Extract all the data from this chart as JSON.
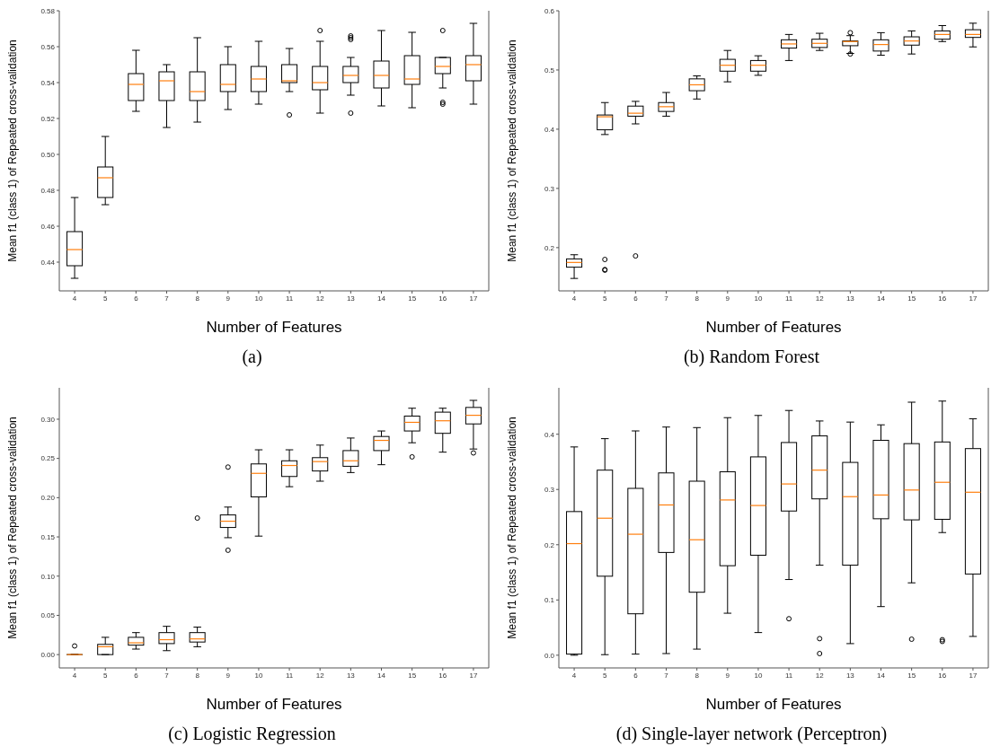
{
  "chart_data": [
    {
      "type": "box",
      "title": "(a)",
      "xlabel": "Number of Features",
      "ylabel": "Mean f1 (class 1) of Repeated cross-validation",
      "color": "#000000",
      "categories": [
        "4",
        "5",
        "6",
        "7",
        "8",
        "9",
        "10",
        "11",
        "12",
        "13",
        "14",
        "15",
        "16",
        "17"
      ],
      "ylim": [
        0.424,
        0.58
      ],
      "yticks": [
        {
          "value": 0.44,
          "label": "0.44"
        },
        {
          "value": 0.46,
          "label": "0.46"
        },
        {
          "value": 0.48,
          "label": "0.48"
        },
        {
          "value": 0.5,
          "label": "0.50"
        },
        {
          "value": 0.52,
          "label": "0.52"
        },
        {
          "value": 0.54,
          "label": "0.54"
        },
        {
          "value": 0.56,
          "label": "0.56"
        },
        {
          "value": 0.58,
          "label": "0.58"
        }
      ],
      "boxes": [
        {
          "low": 0.431,
          "q1": 0.438,
          "median": 0.447,
          "q3": 0.457,
          "high": 0.476
        },
        {
          "low": 0.472,
          "q1": 0.476,
          "median": 0.487,
          "q3": 0.493,
          "high": 0.51
        },
        {
          "low": 0.524,
          "q1": 0.53,
          "median": 0.539,
          "q3": 0.545,
          "high": 0.558
        },
        {
          "low": 0.515,
          "q1": 0.53,
          "median": 0.541,
          "q3": 0.546,
          "high": 0.55
        },
        {
          "low": 0.518,
          "q1": 0.53,
          "median": 0.535,
          "q3": 0.546,
          "high": 0.565
        },
        {
          "low": 0.525,
          "q1": 0.535,
          "median": 0.539,
          "q3": 0.55,
          "high": 0.56
        },
        {
          "low": 0.528,
          "q1": 0.535,
          "median": 0.542,
          "q3": 0.549,
          "high": 0.563
        },
        {
          "low": 0.535,
          "q1": 0.54,
          "median": 0.541,
          "q3": 0.55,
          "high": 0.559,
          "outliers": [
            0.522
          ]
        },
        {
          "low": 0.523,
          "q1": 0.536,
          "median": 0.54,
          "q3": 0.549,
          "high": 0.563,
          "outliers": [
            0.569
          ]
        },
        {
          "low": 0.533,
          "q1": 0.54,
          "median": 0.544,
          "q3": 0.549,
          "high": 0.554,
          "outliers": [
            0.566,
            0.565,
            0.564,
            0.523
          ]
        },
        {
          "low": 0.527,
          "q1": 0.537,
          "median": 0.544,
          "q3": 0.552,
          "high": 0.569
        },
        {
          "low": 0.526,
          "q1": 0.539,
          "median": 0.542,
          "q3": 0.555,
          "high": 0.568
        },
        {
          "low": 0.537,
          "q1": 0.545,
          "median": 0.549,
          "q3": 0.554,
          "high": 0.554,
          "outliers": [
            0.569,
            0.529,
            0.528
          ]
        },
        {
          "low": 0.528,
          "q1": 0.541,
          "median": 0.55,
          "q3": 0.555,
          "high": 0.573
        }
      ]
    },
    {
      "type": "box",
      "title": "(b) Random Forest",
      "xlabel": "Number of Features",
      "ylabel": "Mean f1 (class 1) of Repeated cross-validation",
      "color": "#000000",
      "categories": [
        "4",
        "5",
        "6",
        "7",
        "8",
        "9",
        "10",
        "11",
        "12",
        "13",
        "14",
        "15",
        "16",
        "17"
      ],
      "ylim": [
        0.127,
        0.6
      ],
      "yticks": [
        {
          "value": 0.2,
          "label": "0.2"
        },
        {
          "value": 0.3,
          "label": "0.3"
        },
        {
          "value": 0.4,
          "label": "0.4"
        },
        {
          "value": 0.5,
          "label": "0.5"
        },
        {
          "value": 0.6,
          "label": "0.6"
        }
      ],
      "boxes": [
        {
          "low": 0.148,
          "q1": 0.167,
          "median": 0.175,
          "q3": 0.181,
          "high": 0.188
        },
        {
          "low": 0.391,
          "q1": 0.399,
          "median": 0.421,
          "q3": 0.424,
          "high": 0.445,
          "outliers": [
            0.18,
            0.163,
            0.162
          ]
        },
        {
          "low": 0.409,
          "q1": 0.422,
          "median": 0.427,
          "q3": 0.439,
          "high": 0.447,
          "outliers": [
            0.186
          ]
        },
        {
          "low": 0.422,
          "q1": 0.43,
          "median": 0.438,
          "q3": 0.445,
          "high": 0.462
        },
        {
          "low": 0.451,
          "q1": 0.465,
          "median": 0.475,
          "q3": 0.485,
          "high": 0.49
        },
        {
          "low": 0.48,
          "q1": 0.498,
          "median": 0.508,
          "q3": 0.518,
          "high": 0.533
        },
        {
          "low": 0.491,
          "q1": 0.498,
          "median": 0.508,
          "q3": 0.516,
          "high": 0.524
        },
        {
          "low": 0.516,
          "q1": 0.537,
          "median": 0.544,
          "q3": 0.551,
          "high": 0.56
        },
        {
          "low": 0.533,
          "q1": 0.538,
          "median": 0.545,
          "q3": 0.552,
          "high": 0.562
        },
        {
          "low": 0.528,
          "q1": 0.541,
          "median": 0.548,
          "q3": 0.549,
          "high": 0.558,
          "outliers": [
            0.563,
            0.527
          ]
        },
        {
          "low": 0.525,
          "q1": 0.532,
          "median": 0.543,
          "q3": 0.551,
          "high": 0.563
        },
        {
          "low": 0.527,
          "q1": 0.542,
          "median": 0.549,
          "q3": 0.556,
          "high": 0.566
        },
        {
          "low": 0.548,
          "q1": 0.552,
          "median": 0.56,
          "q3": 0.566,
          "high": 0.575
        },
        {
          "low": 0.539,
          "q1": 0.555,
          "median": 0.56,
          "q3": 0.568,
          "high": 0.579
        }
      ]
    },
    {
      "type": "box",
      "title": "(c) Logistic Regression",
      "xlabel": "Number of Features",
      "ylabel": "Mean f1 (class 1) of Repeated cross-validation",
      "color": "#000000",
      "categories": [
        "4",
        "5",
        "6",
        "7",
        "8",
        "9",
        "10",
        "11",
        "12",
        "13",
        "14",
        "15",
        "16",
        "17"
      ],
      "ylim": [
        -0.017,
        0.34
      ],
      "yticks": [
        {
          "value": 0,
          "label": "0.00"
        },
        {
          "value": 0.05,
          "label": "0.05"
        },
        {
          "value": 0.1,
          "label": "0.10"
        },
        {
          "value": 0.15,
          "label": "0.15"
        },
        {
          "value": 0.2,
          "label": "0.20"
        },
        {
          "value": 0.25,
          "label": "0.25"
        },
        {
          "value": 0.3,
          "label": "0.30"
        }
      ],
      "boxes": [
        {
          "low": 0,
          "q1": 0,
          "median": 0,
          "q3": 0,
          "high": 0,
          "outliers": [
            0.011
          ]
        },
        {
          "low": 0,
          "q1": 0,
          "median": 0.01,
          "q3": 0.013,
          "high": 0.022
        },
        {
          "low": 0.007,
          "q1": 0.012,
          "median": 0.015,
          "q3": 0.022,
          "high": 0.028
        },
        {
          "low": 0.005,
          "q1": 0.014,
          "median": 0.019,
          "q3": 0.028,
          "high": 0.036
        },
        {
          "low": 0.01,
          "q1": 0.016,
          "median": 0.02,
          "q3": 0.028,
          "high": 0.035,
          "outliers": [
            0.174
          ]
        },
        {
          "low": 0.149,
          "q1": 0.162,
          "median": 0.17,
          "q3": 0.178,
          "high": 0.188,
          "outliers": [
            0.239,
            0.133
          ]
        },
        {
          "low": 0.151,
          "q1": 0.201,
          "median": 0.231,
          "q3": 0.243,
          "high": 0.261
        },
        {
          "low": 0.214,
          "q1": 0.227,
          "median": 0.241,
          "q3": 0.247,
          "high": 0.261
        },
        {
          "low": 0.221,
          "q1": 0.234,
          "median": 0.246,
          "q3": 0.251,
          "high": 0.267
        },
        {
          "low": 0.232,
          "q1": 0.24,
          "median": 0.247,
          "q3": 0.26,
          "high": 0.276
        },
        {
          "low": 0.242,
          "q1": 0.26,
          "median": 0.273,
          "q3": 0.278,
          "high": 0.285
        },
        {
          "low": 0.27,
          "q1": 0.285,
          "median": 0.296,
          "q3": 0.304,
          "high": 0.314,
          "outliers": [
            0.252
          ]
        },
        {
          "low": 0.258,
          "q1": 0.282,
          "median": 0.298,
          "q3": 0.309,
          "high": 0.314
        },
        {
          "low": 0.262,
          "q1": 0.294,
          "median": 0.305,
          "q3": 0.315,
          "high": 0.324,
          "outliers": [
            0.257
          ]
        }
      ]
    },
    {
      "type": "box",
      "title": "(d) Single-layer network (Perceptron)",
      "xlabel": "Number of Features",
      "ylabel": "Mean f1 (class 1) of Repeated cross-validation",
      "color": "#000000",
      "categories": [
        "4",
        "5",
        "6",
        "7",
        "8",
        "9",
        "10",
        "11",
        "12",
        "13",
        "14",
        "15",
        "16",
        "17"
      ],
      "ylim": [
        -0.023,
        0.484
      ],
      "yticks": [
        {
          "value": 0,
          "label": "0.0"
        },
        {
          "value": 0.1,
          "label": "0.1"
        },
        {
          "value": 0.2,
          "label": "0.2"
        },
        {
          "value": 0.3,
          "label": "0.3"
        },
        {
          "value": 0.4,
          "label": "0.4"
        }
      ],
      "boxes": [
        {
          "low": 0,
          "q1": 0.002,
          "median": 0.202,
          "q3": 0.26,
          "high": 0.377
        },
        {
          "low": 0.001,
          "q1": 0.143,
          "median": 0.248,
          "q3": 0.335,
          "high": 0.392
        },
        {
          "low": 0.002,
          "q1": 0.075,
          "median": 0.219,
          "q3": 0.302,
          "high": 0.406
        },
        {
          "low": 0.003,
          "q1": 0.186,
          "median": 0.272,
          "q3": 0.33,
          "high": 0.413
        },
        {
          "low": 0.011,
          "q1": 0.114,
          "median": 0.209,
          "q3": 0.315,
          "high": 0.412
        },
        {
          "low": 0.076,
          "q1": 0.162,
          "median": 0.281,
          "q3": 0.332,
          "high": 0.43
        },
        {
          "low": 0.041,
          "q1": 0.181,
          "median": 0.271,
          "q3": 0.359,
          "high": 0.434
        },
        {
          "low": 0.137,
          "q1": 0.261,
          "median": 0.31,
          "q3": 0.385,
          "high": 0.443,
          "outliers": [
            0.066
          ]
        },
        {
          "low": 0.163,
          "q1": 0.283,
          "median": 0.335,
          "q3": 0.397,
          "high": 0.424,
          "outliers": [
            0.03,
            0.003
          ]
        },
        {
          "low": 0.021,
          "q1": 0.163,
          "median": 0.287,
          "q3": 0.349,
          "high": 0.422
        },
        {
          "low": 0.088,
          "q1": 0.247,
          "median": 0.29,
          "q3": 0.389,
          "high": 0.417
        },
        {
          "low": 0.131,
          "q1": 0.245,
          "median": 0.299,
          "q3": 0.383,
          "high": 0.458,
          "outliers": [
            0.029
          ]
        },
        {
          "low": 0.222,
          "q1": 0.246,
          "median": 0.313,
          "q3": 0.386,
          "high": 0.46,
          "outliers": [
            0.028,
            0.025
          ]
        },
        {
          "low": 0.034,
          "q1": 0.147,
          "median": 0.295,
          "q3": 0.374,
          "high": 0.428
        }
      ]
    }
  ]
}
